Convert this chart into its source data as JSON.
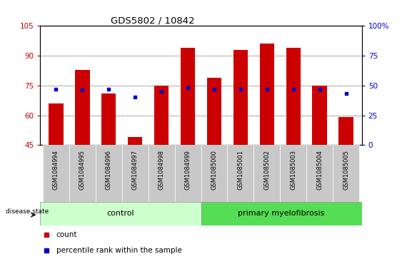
{
  "title": "GDS5802 / 10842",
  "samples": [
    "GSM1084994",
    "GSM1084995",
    "GSM1084996",
    "GSM1084997",
    "GSM1084998",
    "GSM1084999",
    "GSM1085000",
    "GSM1085001",
    "GSM1085002",
    "GSM1085003",
    "GSM1085004",
    "GSM1085005"
  ],
  "counts": [
    66,
    83,
    71,
    49,
    75,
    94,
    79,
    93,
    96,
    94,
    75,
    59
  ],
  "percentile_ranks": [
    47,
    46,
    47,
    40,
    45,
    48,
    47,
    47,
    47,
    47,
    47,
    43
  ],
  "ylim_left": [
    45,
    105
  ],
  "ylim_right": [
    0,
    100
  ],
  "yticks_left": [
    45,
    60,
    75,
    90,
    105
  ],
  "yticks_right": [
    0,
    25,
    50,
    75,
    100
  ],
  "bar_color": "#cc0000",
  "dot_color": "#0000cc",
  "n_control": 6,
  "n_pmf": 6,
  "control_color": "#ccffcc",
  "pmf_color": "#55dd55",
  "control_label": "control",
  "pmf_label": "primary myelofibrosis",
  "disease_state_label": "disease state",
  "legend_count_label": "count",
  "legend_pct_label": "percentile rank within the sample",
  "left_axis_color": "#cc0000",
  "right_axis_color": "#0000cc",
  "background_color": "#ffffff",
  "tick_bg_color": "#c8c8c8",
  "grid_color": "#000000",
  "border_color": "#000000"
}
